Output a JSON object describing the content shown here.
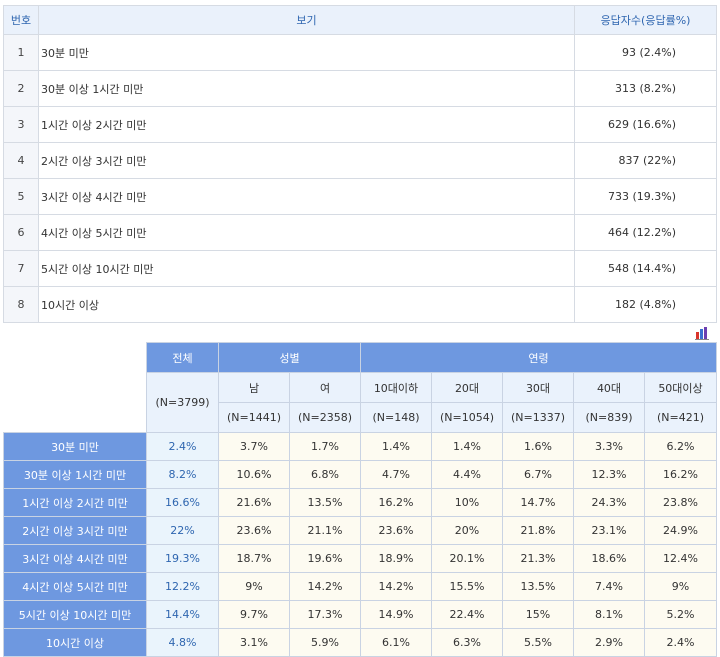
{
  "survey": {
    "headers": {
      "no": "번호",
      "option": "보기",
      "responses": "응답자수(응답률%)"
    },
    "options": [
      {
        "no": "1",
        "label": "30분 미만",
        "result": "93 (2.4%)"
      },
      {
        "no": "2",
        "label": "30분 이상 1시간 미만",
        "result": "313 (8.2%)"
      },
      {
        "no": "3",
        "label": "1시간 이상 2시간 미만",
        "result": "629 (16.6%)"
      },
      {
        "no": "4",
        "label": "2시간 이상 3시간 미만",
        "result": "837 (22%)"
      },
      {
        "no": "5",
        "label": "3시간 이상 4시간 미만",
        "result": "733 (19.3%)"
      },
      {
        "no": "6",
        "label": "4시간 이상 5시간 미만",
        "result": "464 (12.2%)"
      },
      {
        "no": "7",
        "label": "5시간 이상 10시간 미만",
        "result": "548 (14.4%)"
      },
      {
        "no": "8",
        "label": "10시간 이상",
        "result": "182 (4.8%)"
      }
    ]
  },
  "chart_icon": {
    "name": "bar-chart-icon",
    "colors": [
      "#d9342b",
      "#3a6fd0",
      "#6c3fb0"
    ]
  },
  "crosstab": {
    "group_total": "전체",
    "group_gender": "성별",
    "group_age": "연령",
    "total_n": "(N=3799)",
    "gender": [
      {
        "label": "남",
        "n": "(N=1441)"
      },
      {
        "label": "여",
        "n": "(N=2358)"
      }
    ],
    "age": [
      {
        "label": "10대이하",
        "n": "(N=148)"
      },
      {
        "label": "20대",
        "n": "(N=1054)"
      },
      {
        "label": "30대",
        "n": "(N=1337)"
      },
      {
        "label": "40대",
        "n": "(N=839)"
      },
      {
        "label": "50대이상",
        "n": "(N=421)"
      }
    ],
    "rows": [
      {
        "label": "30분 미만",
        "total": "2.4%",
        "values": [
          "3.7%",
          "1.7%",
          "1.4%",
          "1.4%",
          "1.6%",
          "3.3%",
          "6.2%"
        ]
      },
      {
        "label": "30분 이상 1시간 미만",
        "total": "8.2%",
        "values": [
          "10.6%",
          "6.8%",
          "4.7%",
          "4.4%",
          "6.7%",
          "12.3%",
          "16.2%"
        ]
      },
      {
        "label": "1시간 이상 2시간 미만",
        "total": "16.6%",
        "values": [
          "21.6%",
          "13.5%",
          "16.2%",
          "10%",
          "14.7%",
          "24.3%",
          "23.8%"
        ]
      },
      {
        "label": "2시간 이상 3시간 미만",
        "total": "22%",
        "values": [
          "23.6%",
          "21.1%",
          "23.6%",
          "20%",
          "21.8%",
          "23.1%",
          "24.9%"
        ]
      },
      {
        "label": "3시간 이상 4시간 미만",
        "total": "19.3%",
        "values": [
          "18.7%",
          "19.6%",
          "18.9%",
          "20.1%",
          "21.3%",
          "18.6%",
          "12.4%"
        ]
      },
      {
        "label": "4시간 이상 5시간 미만",
        "total": "12.2%",
        "values": [
          "9%",
          "14.2%",
          "14.2%",
          "15.5%",
          "13.5%",
          "7.4%",
          "9%"
        ]
      },
      {
        "label": "5시간 이상 10시간 미만",
        "total": "14.4%",
        "values": [
          "9.7%",
          "17.3%",
          "14.9%",
          "22.4%",
          "15%",
          "8.1%",
          "5.2%"
        ]
      },
      {
        "label": "10시간 이상",
        "total": "4.8%",
        "values": [
          "3.1%",
          "5.9%",
          "6.1%",
          "6.3%",
          "5.5%",
          "2.9%",
          "2.4%"
        ]
      }
    ]
  }
}
